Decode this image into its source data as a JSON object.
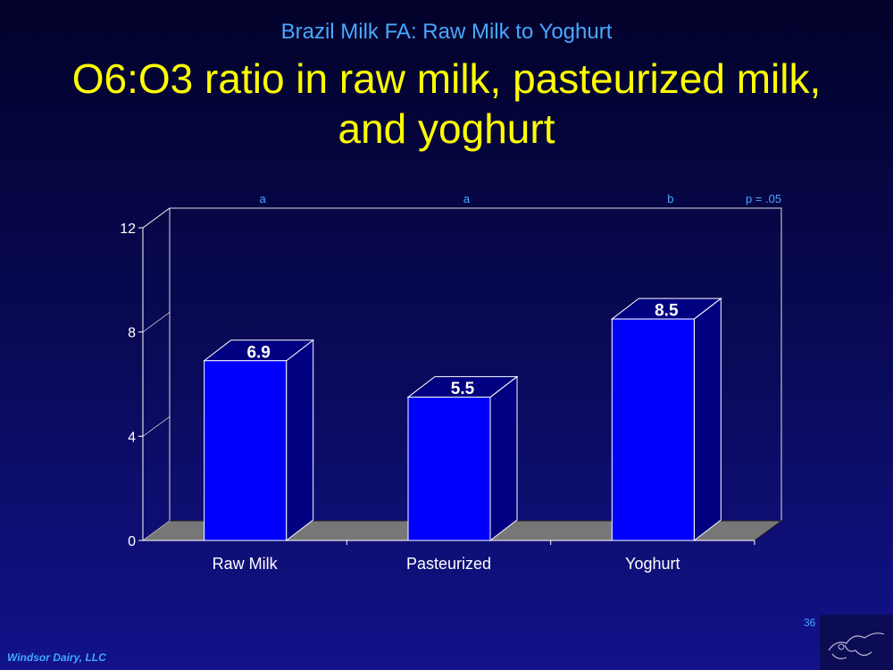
{
  "slide": {
    "subtitle": "Brazil Milk FA: Raw Milk to Yoghurt",
    "title": "O6:O3 ratio in raw milk, pasteurized milk, and yoghurt",
    "footer": "Windsor Dairy, LLC",
    "page_number": "36"
  },
  "colors": {
    "background": "#0a0a5a",
    "bar_front": "#0000ff",
    "bar_side": "#000080",
    "floor": "#777777",
    "title": "#ffff00",
    "accent": "#4aa8ff"
  },
  "chart_data": {
    "type": "bar",
    "style": "3d",
    "title": "",
    "xlabel": "",
    "ylabel": "",
    "categories": [
      "Raw Milk",
      "Pasteurized",
      "Yoghurt"
    ],
    "values": [
      6.9,
      5.5,
      8.5
    ],
    "data_labels": [
      "6.9",
      "5.5",
      "8.5"
    ],
    "ylim": [
      0,
      12
    ],
    "yticks": [
      0,
      4,
      8,
      12
    ],
    "ytick_labels": [
      "0",
      "4",
      "8",
      "12"
    ],
    "significance_letters": [
      "a",
      "a",
      "b"
    ],
    "significance_note": "p = .05",
    "grid": false,
    "legend": "none"
  }
}
